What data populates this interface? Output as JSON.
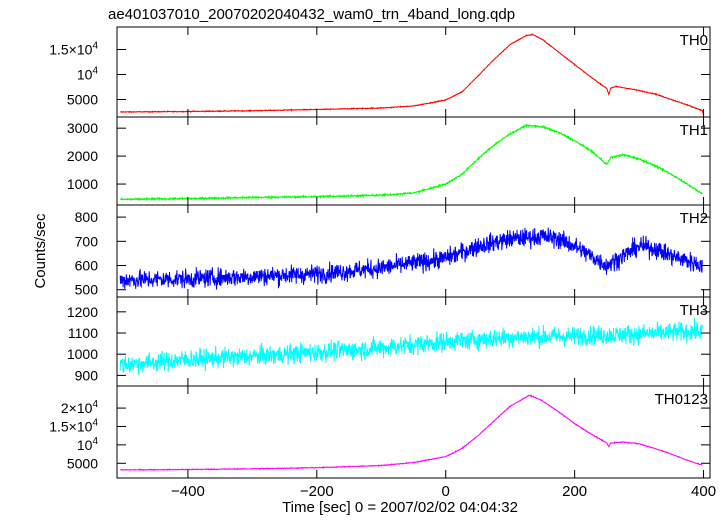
{
  "page_title": "ae401037010_20070202040432_wam0_trn_4band_long.qdp",
  "chart_data": {
    "type": "line",
    "title": "ae401037010_20070202040432_wam0_trn_4band_long.qdp",
    "xlabel": "Time [sec] 0 = 2007/02/02 04:04:32",
    "ylabel": "Counts/sec",
    "xlim": [
      -510,
      410
    ],
    "x_ticks": [
      -400,
      -200,
      0,
      200,
      400
    ],
    "x_tick_labels": [
      "−400",
      "−200",
      "0",
      "200",
      "400"
    ],
    "grid": false,
    "panels": [
      {
        "name": "TH0",
        "color": "#ff0000",
        "ylim": [
          1500,
          19500
        ],
        "y_ticks": [
          5000,
          10000,
          15000
        ],
        "y_tick_labels": [
          {
            "base": "5000",
            "sup": ""
          },
          {
            "base": "10",
            "sup": "4"
          },
          {
            "base": "1.5×10",
            "sup": "4"
          }
        ],
        "noise": 80,
        "series": {
          "x": [
            -505,
            -400,
            -300,
            -200,
            -100,
            -50,
            0,
            25,
            50,
            75,
            100,
            125,
            135,
            150,
            175,
            200,
            225,
            250,
            253,
            256,
            265,
            300,
            325,
            350,
            375,
            398,
            400
          ],
          "y": [
            2500,
            2600,
            2750,
            3000,
            3300,
            3700,
            4900,
            6500,
            9700,
            13000,
            16000,
            17800,
            18000,
            17000,
            14500,
            12000,
            9500,
            7200,
            6000,
            7300,
            7600,
            6800,
            6100,
            5000,
            3900,
            2800,
            1900
          ]
        }
      },
      {
        "name": "TH1",
        "color": "#00ff00",
        "ylim": [
          250,
          3400
        ],
        "y_ticks": [
          1000,
          2000,
          3000
        ],
        "y_tick_labels": [
          {
            "base": "1000",
            "sup": ""
          },
          {
            "base": "2000",
            "sup": ""
          },
          {
            "base": "3000",
            "sup": ""
          }
        ],
        "noise": 30,
        "series": {
          "x": [
            -505,
            -400,
            -300,
            -200,
            -100,
            -50,
            0,
            25,
            50,
            75,
            100,
            125,
            150,
            175,
            200,
            225,
            250,
            256,
            275,
            300,
            325,
            350,
            375,
            398
          ],
          "y": [
            450,
            480,
            520,
            550,
            600,
            680,
            1000,
            1350,
            1900,
            2400,
            2800,
            3100,
            3050,
            2850,
            2550,
            2200,
            1700,
            1950,
            2050,
            1900,
            1650,
            1350,
            1000,
            650
          ]
        }
      },
      {
        "name": "TH2",
        "color": "#0000ff",
        "ylim": [
          470,
          850
        ],
        "y_ticks": [
          500,
          600,
          700,
          800
        ],
        "y_tick_labels": [
          {
            "base": "500",
            "sup": ""
          },
          {
            "base": "600",
            "sup": ""
          },
          {
            "base": "700",
            "sup": ""
          },
          {
            "base": "800",
            "sup": ""
          }
        ],
        "noise": 38,
        "series": {
          "x": [
            -505,
            -400,
            -300,
            -200,
            -100,
            -50,
            0,
            50,
            100,
            125,
            150,
            175,
            200,
            225,
            250,
            275,
            300,
            325,
            350,
            375,
            398
          ],
          "y": [
            540,
            545,
            555,
            565,
            590,
            610,
            630,
            680,
            710,
            715,
            720,
            710,
            680,
            640,
            600,
            640,
            680,
            670,
            640,
            620,
            600
          ]
        }
      },
      {
        "name": "TH3",
        "color": "#00ffff",
        "ylim": [
          850,
          1270
        ],
        "y_ticks": [
          900,
          1000,
          1100,
          1200
        ],
        "y_tick_labels": [
          {
            "base": "900",
            "sup": ""
          },
          {
            "base": "1000",
            "sup": ""
          },
          {
            "base": "1100",
            "sup": ""
          },
          {
            "base": "1200",
            "sup": ""
          }
        ],
        "noise": 45,
        "series": {
          "x": [
            -505,
            -400,
            -300,
            -200,
            -100,
            0,
            100,
            200,
            300,
            398
          ],
          "y": [
            950,
            975,
            990,
            1010,
            1030,
            1060,
            1080,
            1085,
            1095,
            1110
          ]
        }
      },
      {
        "name": "TH0123",
        "color": "#ff00ff",
        "ylim": [
          1000,
          26000
        ],
        "y_ticks": [
          5000,
          10000,
          15000,
          20000
        ],
        "y_tick_labels": [
          {
            "base": "5000",
            "sup": ""
          },
          {
            "base": "10",
            "sup": "4"
          },
          {
            "base": "1.5×10",
            "sup": "4"
          },
          {
            "base": "2×10",
            "sup": "4"
          }
        ],
        "noise": 110,
        "series": {
          "x": [
            -505,
            -400,
            -300,
            -200,
            -100,
            -50,
            0,
            25,
            50,
            75,
            100,
            125,
            130,
            150,
            175,
            200,
            225,
            250,
            253,
            256,
            275,
            300,
            325,
            350,
            375,
            398
          ],
          "y": [
            3200,
            3300,
            3500,
            3800,
            4400,
            5200,
            6800,
            9000,
            12500,
            16500,
            20500,
            23000,
            23500,
            22000,
            19000,
            15800,
            13000,
            10500,
            9500,
            10500,
            10800,
            10300,
            9000,
            7500,
            5800,
            4500
          ]
        }
      }
    ]
  }
}
